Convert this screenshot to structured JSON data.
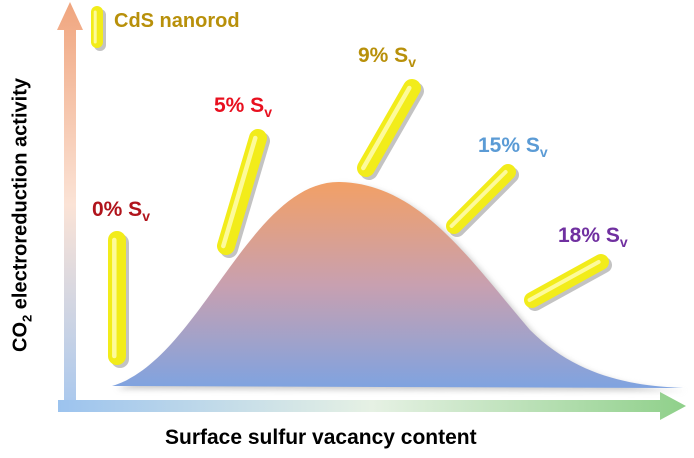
{
  "legend": {
    "label": "CdS nanorod",
    "color": "#b8900a"
  },
  "y_axis_label": {
    "prefix": "CO",
    "subscript": "2",
    "rest": " electroreduction activity"
  },
  "x_axis_label": "Surface sulfur vacancy content",
  "samples": [
    {
      "label": "0% S",
      "sub": "v",
      "color": "#b0141c"
    },
    {
      "label": "5% S",
      "sub": "v",
      "color": "#e8101f"
    },
    {
      "label": "9% S",
      "sub": "v",
      "color": "#b8900a"
    },
    {
      "label": "15% S",
      "sub": "v",
      "color": "#5b9bd5"
    },
    {
      "label": "18% S",
      "sub": "v",
      "color": "#7030a0"
    }
  ],
  "colors": {
    "rod": "#f2ec1a",
    "curve_top": "#f2a066",
    "curve_bottom": "#7fa3e0",
    "y_arrow": "#f0a57e",
    "x_arrow_start": "#9cc3ee",
    "x_arrow_end": "#8fd08a"
  }
}
